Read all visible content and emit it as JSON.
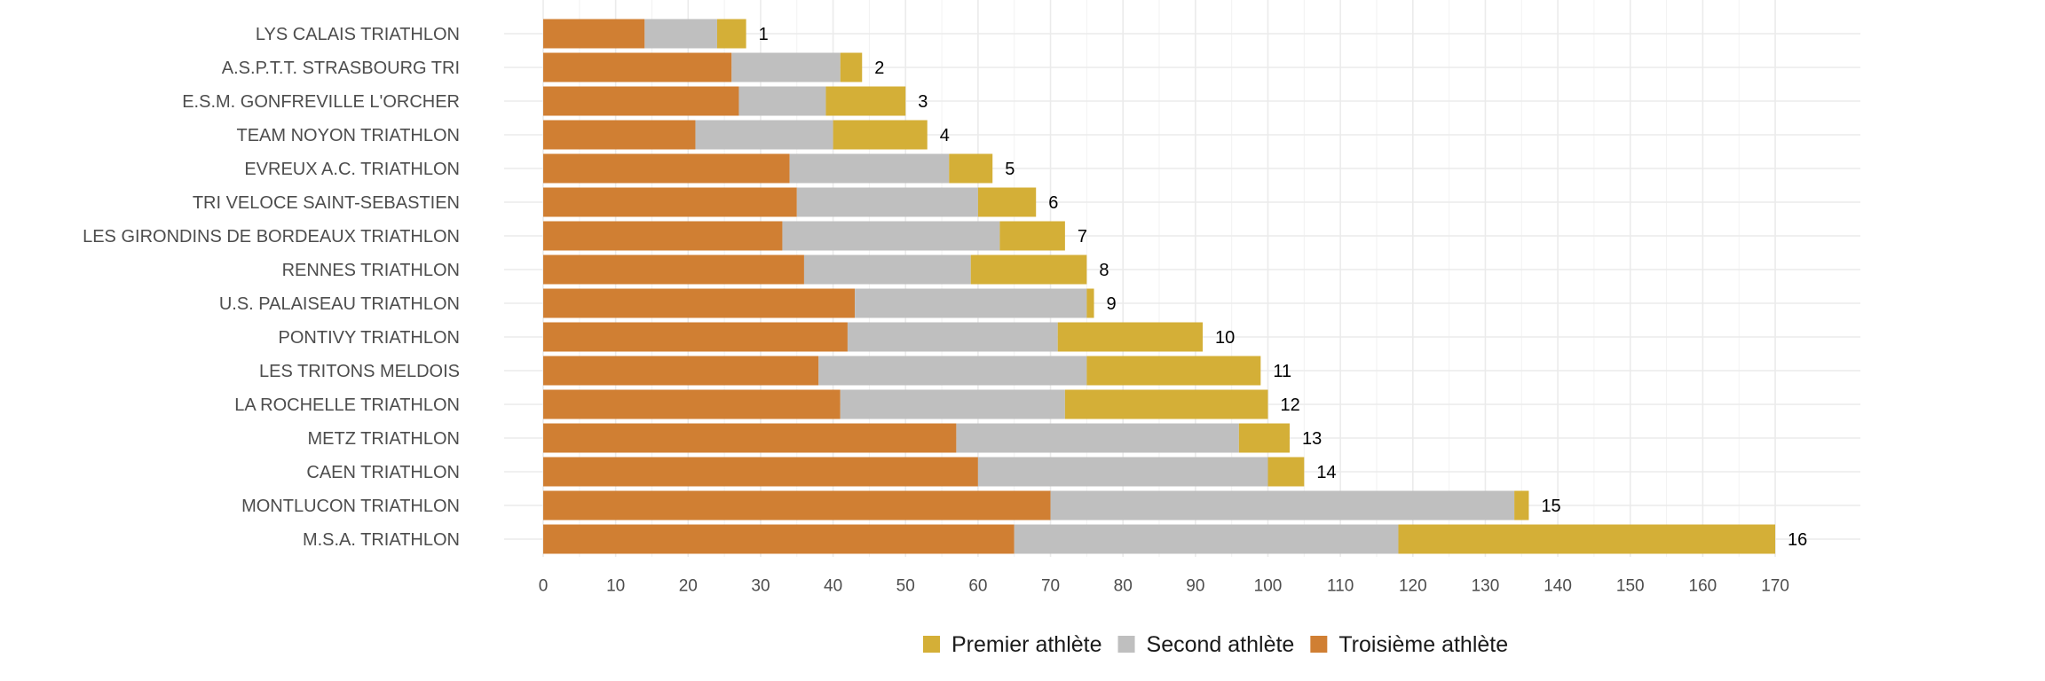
{
  "chart_data": {
    "type": "bar",
    "orientation": "horizontal",
    "stacked": true,
    "categories": [
      "LYS CALAIS TRIATHLON",
      "A.S.P.T.T. STRASBOURG TRI",
      "E.S.M. GONFREVILLE L'ORCHER",
      "TEAM NOYON TRIATHLON",
      "EVREUX A.C. TRIATHLON",
      "TRI VELOCE SAINT-SEBASTIEN",
      "LES GIRONDINS DE BORDEAUX TRIATHLON",
      "RENNES TRIATHLON",
      "U.S. PALAISEAU TRIATHLON",
      "PONTIVY TRIATHLON",
      "LES TRITONS MELDOIS",
      "LA ROCHELLE TRIATHLON",
      "METZ TRIATHLON",
      "CAEN TRIATHLON",
      "MONTLUCON TRIATHLON",
      "M.S.A. TRIATHLON"
    ],
    "series": [
      {
        "name": "Troisième athlète",
        "color": "#D07F33",
        "values": [
          14,
          26,
          27,
          21,
          34,
          35,
          33,
          36,
          43,
          42,
          38,
          41,
          57,
          60,
          70,
          65
        ]
      },
      {
        "name": "Second athlète",
        "color": "#BFBFBF",
        "values": [
          10,
          15,
          12,
          19,
          22,
          25,
          30,
          23,
          32,
          29,
          37,
          31,
          39,
          40,
          64,
          53
        ]
      },
      {
        "name": "Premier athlète",
        "color": "#D4AF37",
        "values": [
          4,
          3,
          11,
          13,
          6,
          8,
          9,
          16,
          1,
          20,
          24,
          28,
          7,
          5,
          2,
          52
        ]
      }
    ],
    "rank_labels": [
      "1",
      "2",
      "3",
      "4",
      "5",
      "6",
      "7",
      "8",
      "9",
      "10",
      "11",
      "12",
      "13",
      "14",
      "15",
      "16"
    ],
    "x_ticks": [
      0,
      10,
      20,
      30,
      40,
      50,
      60,
      70,
      80,
      90,
      100,
      110,
      120,
      130,
      140,
      150,
      160,
      170
    ],
    "xlim": [
      -5,
      182
    ],
    "legend": {
      "position": "bottom",
      "items": [
        "Premier athlète",
        "Second athlète",
        "Troisième athlète"
      ]
    },
    "grid": true
  }
}
